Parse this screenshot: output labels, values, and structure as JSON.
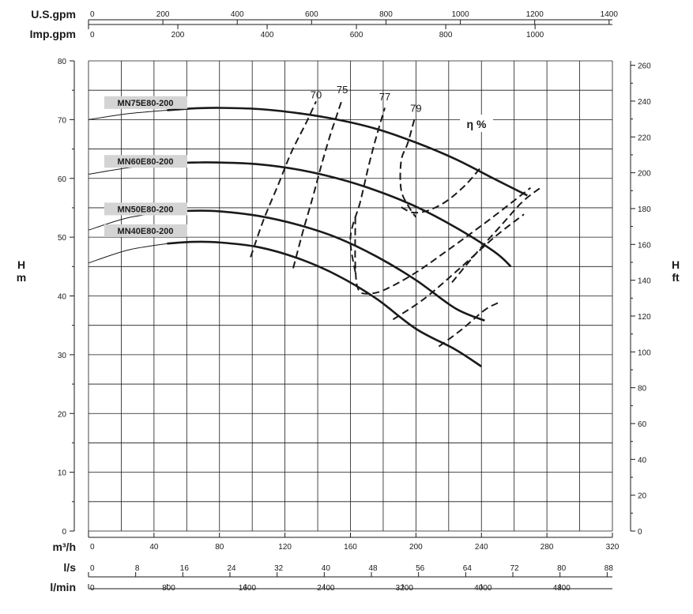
{
  "chart_data": {
    "type": "line",
    "title": "",
    "x_axes": {
      "m3h": {
        "label": "m³/h",
        "range": [
          0,
          320
        ],
        "ticks": [
          0,
          40,
          80,
          120,
          160,
          200,
          240,
          280,
          320
        ]
      },
      "ls": {
        "label": "l/s",
        "ticks": [
          0,
          8,
          16,
          24,
          32,
          40,
          48,
          56,
          64,
          72,
          80,
          88
        ]
      },
      "lmin": {
        "label": "l/min",
        "ticks": [
          0,
          800,
          1600,
          2400,
          3200,
          4000,
          4800
        ]
      },
      "usgpm": {
        "label": "U.S.gpm",
        "ticks": [
          0,
          200,
          400,
          600,
          800,
          1000,
          1200,
          1400
        ]
      },
      "impgpm": {
        "label": "Imp.gpm",
        "ticks": [
          0,
          200,
          400,
          600,
          800,
          1000
        ]
      }
    },
    "y_axes": {
      "left": {
        "label_top": "H",
        "label_bottom": "m",
        "range": [
          0,
          80
        ],
        "ticks": [
          0,
          10,
          20,
          30,
          40,
          50,
          60,
          70,
          80
        ]
      },
      "right": {
        "label_top": "H",
        "label_bottom": "ft",
        "range": [
          0,
          262.4
        ],
        "ticks": [
          0,
          20,
          40,
          60,
          80,
          100,
          120,
          140,
          160,
          180,
          200,
          220,
          240,
          260
        ]
      }
    },
    "grid": true,
    "series": [
      {
        "name": "MN75E80-200",
        "x": [
          0,
          24,
          48,
          64,
          80,
          104,
          128,
          152,
          176,
          200,
          224,
          248,
          268
        ],
        "y": [
          70,
          71,
          71.6,
          71.9,
          72,
          71.8,
          71.1,
          70,
          68.4,
          66.1,
          63.3,
          59.9,
          57.1
        ]
      },
      {
        "name": "MN60E80-200",
        "x": [
          0,
          24,
          48,
          64,
          80,
          104,
          128,
          152,
          176,
          200,
          224,
          248,
          258
        ],
        "y": [
          60.7,
          61.8,
          62.5,
          62.7,
          62.7,
          62.4,
          61.5,
          60,
          57.9,
          55.2,
          51.7,
          47.5,
          45
        ]
      },
      {
        "name": "MN50E80-200",
        "x": [
          0,
          24,
          48,
          64,
          80,
          104,
          128,
          152,
          176,
          200,
          224,
          242
        ],
        "y": [
          51.2,
          53.3,
          54.3,
          54.5,
          54.4,
          53.6,
          52.1,
          49.9,
          46.7,
          42.7,
          37.9,
          35.8
        ]
      },
      {
        "name": "MN40E80-200",
        "x": [
          0,
          24,
          48,
          64,
          80,
          104,
          128,
          152,
          176,
          200,
          224,
          240
        ],
        "y": [
          45.6,
          47.8,
          48.9,
          49.2,
          49.1,
          48.3,
          46.4,
          43.5,
          39.5,
          34.4,
          30.9,
          28
        ]
      }
    ],
    "efficiency_curves": [
      {
        "value": "70",
        "x": [
          99,
          107,
          116,
          124,
          133,
          139
        ],
        "y": [
          46.6,
          53,
          59,
          64.5,
          69.5,
          73.1
        ]
      },
      {
        "value": "75",
        "x": [
          125,
          131,
          137,
          142,
          147,
          151,
          155
        ],
        "y": [
          44.7,
          51,
          56.8,
          62,
          66.8,
          70.2,
          73.5
        ]
      },
      {
        "value": "77",
        "x": [
          163,
          160,
          166,
          171,
          176,
          181
        ],
        "y": [
          44,
          50,
          56,
          62,
          67.3,
          72
        ],
        "loop": {
          "x": [
            222,
            206,
            190,
            175,
            163
          ],
          "y": [
            42.3,
            44.6,
            47.2,
            50,
            53.4
          ]
        }
      },
      {
        "value": "79",
        "x": [
          199,
          195,
          191,
          191,
          196,
          200
        ],
        "y": [
          70,
          66,
          63,
          58,
          55,
          53.4
        ]
      }
    ],
    "efficiency_label": "η %",
    "annotations": [
      "MN75E80-200",
      "MN60E80-200",
      "MN50E80-200",
      "MN40E80-200",
      "70",
      "75",
      "77",
      "79",
      "η %"
    ]
  }
}
